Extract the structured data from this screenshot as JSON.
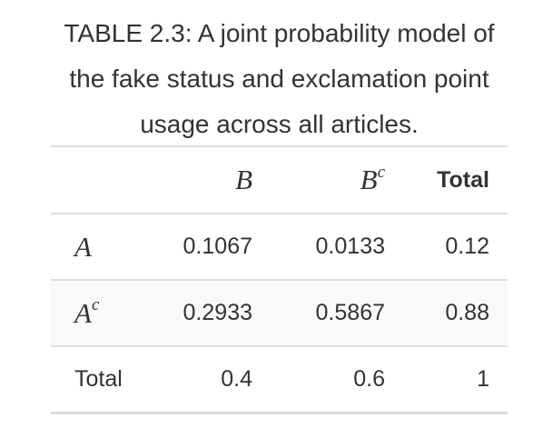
{
  "caption": "TABLE 2.3: A joint probability model of the fake status and exclamation point usage across all articles.",
  "table": {
    "header": [
      {
        "label": "",
        "sup": ""
      },
      {
        "label": "B",
        "sup": ""
      },
      {
        "label": "B",
        "sup": "c"
      },
      {
        "label": "Total",
        "sup": ""
      }
    ],
    "rows": [
      {
        "label": "A",
        "sup": "",
        "values": [
          "0.1067",
          "0.0133",
          "0.12"
        ]
      },
      {
        "label": "A",
        "sup": "c",
        "values": [
          "0.2933",
          "0.5867",
          "0.88"
        ]
      },
      {
        "label": "Total",
        "sup": "",
        "values": [
          "0.4",
          "0.6",
          "1"
        ]
      }
    ]
  }
}
